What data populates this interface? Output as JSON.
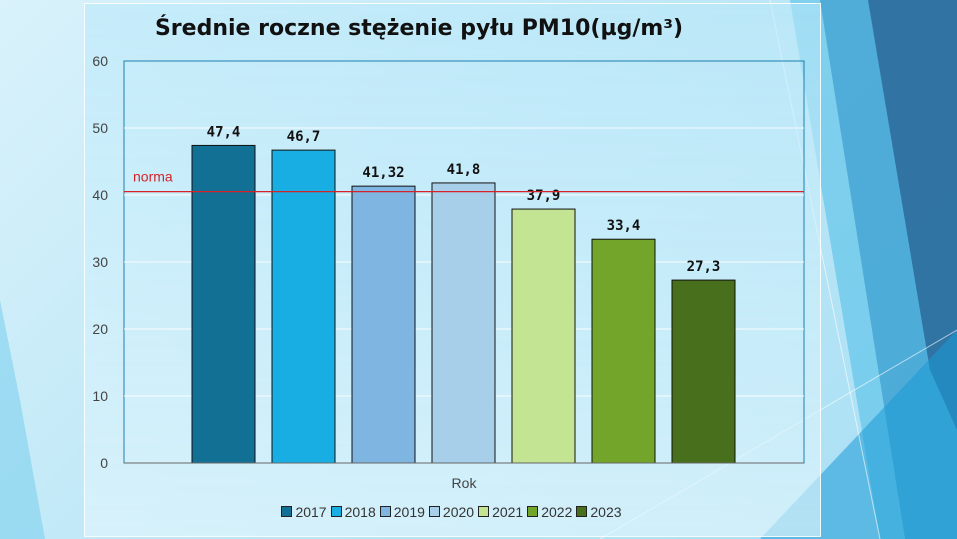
{
  "chart_data": {
    "type": "bar",
    "title": "Średnie roczne stężenie pyłu PM10(µg/m³)",
    "xlabel": "Rok",
    "ylabel": "",
    "ylim": [
      0,
      60
    ],
    "yticks": [
      "0",
      "10",
      "20",
      "30",
      "40",
      "50",
      "60"
    ],
    "categories": [
      "2017",
      "2018",
      "2019",
      "2020",
      "2021",
      "2022",
      "2023"
    ],
    "values": [
      47.4,
      46.7,
      41.32,
      41.8,
      37.9,
      33.4,
      27.3
    ],
    "value_labels": [
      "47,4",
      "46,7",
      "41,32",
      "41,8",
      "37,9",
      "33,4",
      "27,3"
    ],
    "colors": [
      "#137095",
      "#18ade3",
      "#7fb5e1",
      "#a8cfea",
      "#c3e493",
      "#72a52a",
      "#48701c"
    ],
    "reference_line": {
      "label": "norma",
      "value": 40.5,
      "color": "#d6232a"
    },
    "legend": {
      "position": "bottom"
    },
    "grid": true
  }
}
